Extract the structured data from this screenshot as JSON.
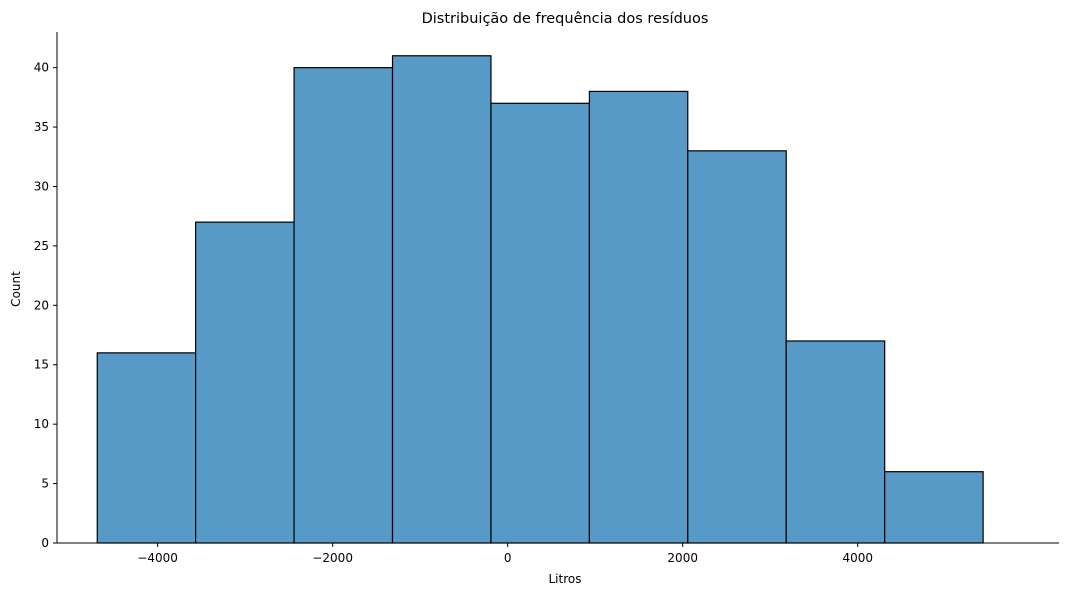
{
  "chart_data": {
    "type": "histogram",
    "title": "Distribuição de frequência dos resíduos",
    "xlabel": "Litros",
    "ylabel": "Count",
    "xlim": [
      -5150,
      6300
    ],
    "ylim": [
      0,
      43
    ],
    "grid": false,
    "bar_color": "#5799c7",
    "edge_color": "#000000",
    "x_ticks": [
      {
        "value": -4000,
        "label": "−4000"
      },
      {
        "value": -2000,
        "label": "−2000"
      },
      {
        "value": 0,
        "label": "0"
      },
      {
        "value": 2000,
        "label": "2000"
      },
      {
        "value": 4000,
        "label": "4000"
      }
    ],
    "y_ticks": [
      {
        "value": 0,
        "label": "0"
      },
      {
        "value": 5,
        "label": "5"
      },
      {
        "value": 10,
        "label": "10"
      },
      {
        "value": 15,
        "label": "15"
      },
      {
        "value": 20,
        "label": "20"
      },
      {
        "value": 25,
        "label": "25"
      },
      {
        "value": 30,
        "label": "30"
      },
      {
        "value": 35,
        "label": "35"
      },
      {
        "value": 40,
        "label": "40"
      }
    ],
    "bins": [
      {
        "start": -4690,
        "end": -3566,
        "count": 16
      },
      {
        "start": -3566,
        "end": -2441,
        "count": 27
      },
      {
        "start": -2441,
        "end": -1316,
        "count": 40
      },
      {
        "start": -1316,
        "end": -191,
        "count": 41
      },
      {
        "start": -191,
        "end": 934,
        "count": 37
      },
      {
        "start": 934,
        "end": 2058,
        "count": 38
      },
      {
        "start": 2058,
        "end": 3183,
        "count": 33
      },
      {
        "start": 3183,
        "end": 4308,
        "count": 17
      },
      {
        "start": 4308,
        "end": 5433,
        "count": 6
      }
    ]
  }
}
